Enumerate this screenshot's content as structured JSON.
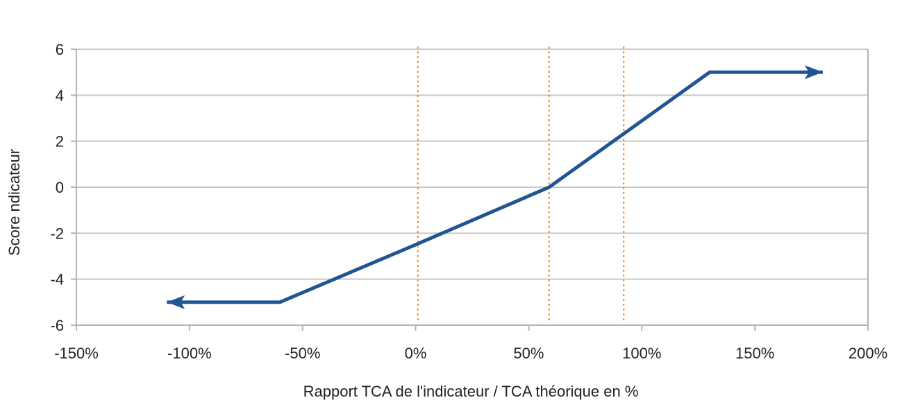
{
  "chart_data": {
    "type": "line",
    "title": "",
    "xlabel": "Rapport TCA de l'indicateur / TCA théorique en %",
    "ylabel": "Score ndicateur",
    "xlim": [
      -150,
      200
    ],
    "ylim": [
      -6,
      6
    ],
    "x_ticks": [
      -150,
      -100,
      -50,
      0,
      50,
      100,
      150,
      200
    ],
    "x_tick_labels": [
      "-150%",
      "-100%",
      "-50%",
      "0%",
      "50%",
      "100%",
      "150%",
      "200%"
    ],
    "y_ticks": [
      -6,
      -4,
      -2,
      0,
      2,
      4,
      6
    ],
    "y_tick_labels": [
      "-6",
      "-4",
      "-2",
      "0",
      "2",
      "4",
      "6"
    ],
    "grid": {
      "horizontal": true,
      "vertical": false
    },
    "legend": "none",
    "series": [
      {
        "x": [
          -110,
          -60,
          0,
          59,
          130,
          180
        ],
        "y": [
          -5,
          -5,
          -2.5,
          0,
          5,
          5
        ],
        "color": "#1f5593",
        "arrow_start": true,
        "arrow_end": true
      }
    ],
    "reference_lines": [
      {
        "orientation": "vertical",
        "x": 1,
        "color": "#ee8a2a",
        "style": "dotted"
      },
      {
        "orientation": "vertical",
        "x": 59,
        "color": "#ee8a2a",
        "style": "dotted"
      },
      {
        "orientation": "vertical",
        "x": 92,
        "color": "#ee8a2a",
        "style": "dotted"
      }
    ]
  },
  "colors": {
    "grid": "#c8c8c8",
    "axis": "#b3b3b3",
    "series": "#1f5593",
    "reference": "#ee8a2a"
  }
}
